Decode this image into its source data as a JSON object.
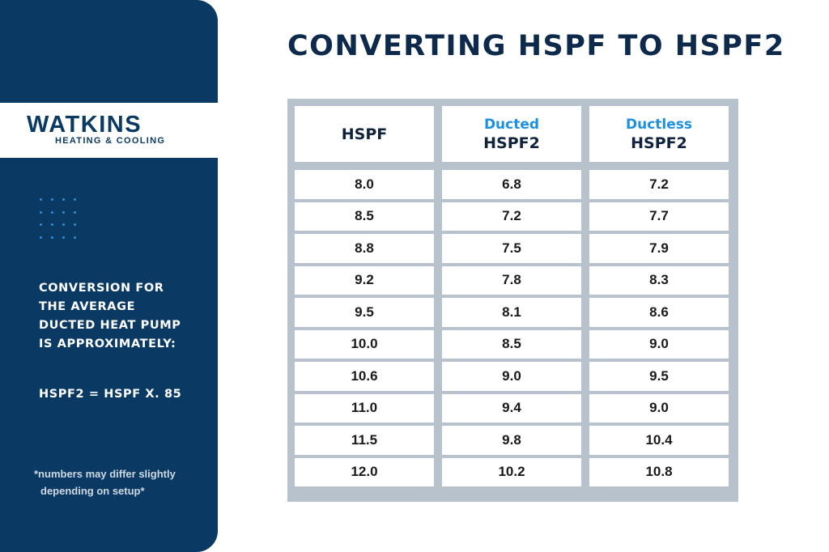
{
  "brand": {
    "name": "WATKINS",
    "tagline": "HEATING & COOLING",
    "colors": {
      "navy": "#0a3a63",
      "accent_blue": "#1e90e0",
      "table_border": "#b8c2cc"
    }
  },
  "title": "CONVERTING HSPF TO HSPF2",
  "sidebar": {
    "text_lines": [
      "CONVERSION FOR",
      "THE AVERAGE",
      "DUCTED HEAT PUMP",
      "IS APPROXIMATELY:"
    ],
    "formula": "HSPF2 = HSPF X. 85",
    "note_lines": [
      "*numbers may differ slightly",
      "depending on setup*"
    ],
    "decoration_icon": "dot-grid-icon"
  },
  "table": {
    "headers": [
      {
        "accent": "",
        "label": "HSPF"
      },
      {
        "accent": "Ducted",
        "label": "HSPF2"
      },
      {
        "accent": "Ductless",
        "label": "HSPF2"
      }
    ],
    "rows": [
      [
        "8.0",
        "6.8",
        "7.2"
      ],
      [
        "8.5",
        "7.2",
        "7.7"
      ],
      [
        "8.8",
        "7.5",
        "7.9"
      ],
      [
        "9.2",
        "7.8",
        "8.3"
      ],
      [
        "9.5",
        "8.1",
        "8.6"
      ],
      [
        "10.0",
        "8.5",
        "9.0"
      ],
      [
        "10.6",
        "9.0",
        "9.5"
      ],
      [
        "11.0",
        "9.4",
        "9.0"
      ],
      [
        "11.5",
        "9.8",
        "10.4"
      ],
      [
        "12.0",
        "10.2",
        "10.8"
      ]
    ]
  }
}
